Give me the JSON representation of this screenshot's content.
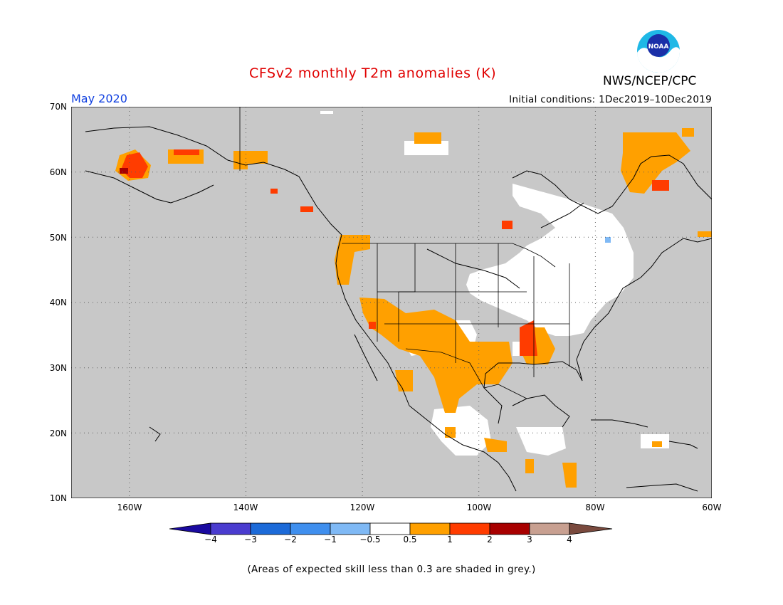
{
  "header": {
    "title": "CFSv2 monthly T2m anomalies (K)",
    "agency": "NWS/NCEP/CPC",
    "logo_text": "NOAA",
    "period": "May 2020",
    "initial_conditions": "Initial conditions: 1Dec2019–10Dec2019"
  },
  "map": {
    "extent": {
      "lon": [
        -170,
        -60
      ],
      "lat": [
        10,
        70
      ]
    },
    "lat_labels": [
      "70N",
      "60N",
      "50N",
      "40N",
      "30N",
      "20N",
      "10N"
    ],
    "lon_labels": [
      "160W",
      "140W",
      "120W",
      "100W",
      "80W",
      "60W"
    ],
    "background_color": "#c8c8c8",
    "gridlines": true
  },
  "legend": {
    "labels": [
      "−4",
      "−3",
      "−2",
      "−1",
      "−0.5",
      "0.5",
      "1",
      "2",
      "3",
      "4"
    ],
    "colors": [
      "#1a0aa0",
      "#4a3ccf",
      "#1c6ad8",
      "#3f8fee",
      "#7fb9f5",
      "#ffffff",
      "#ffa000",
      "#ff3c00",
      "#a80000",
      "#c8a091",
      "#7a4a3e"
    ]
  },
  "footnote": "(Areas of expected skill less than 0.3 are shaded in grey.)"
}
